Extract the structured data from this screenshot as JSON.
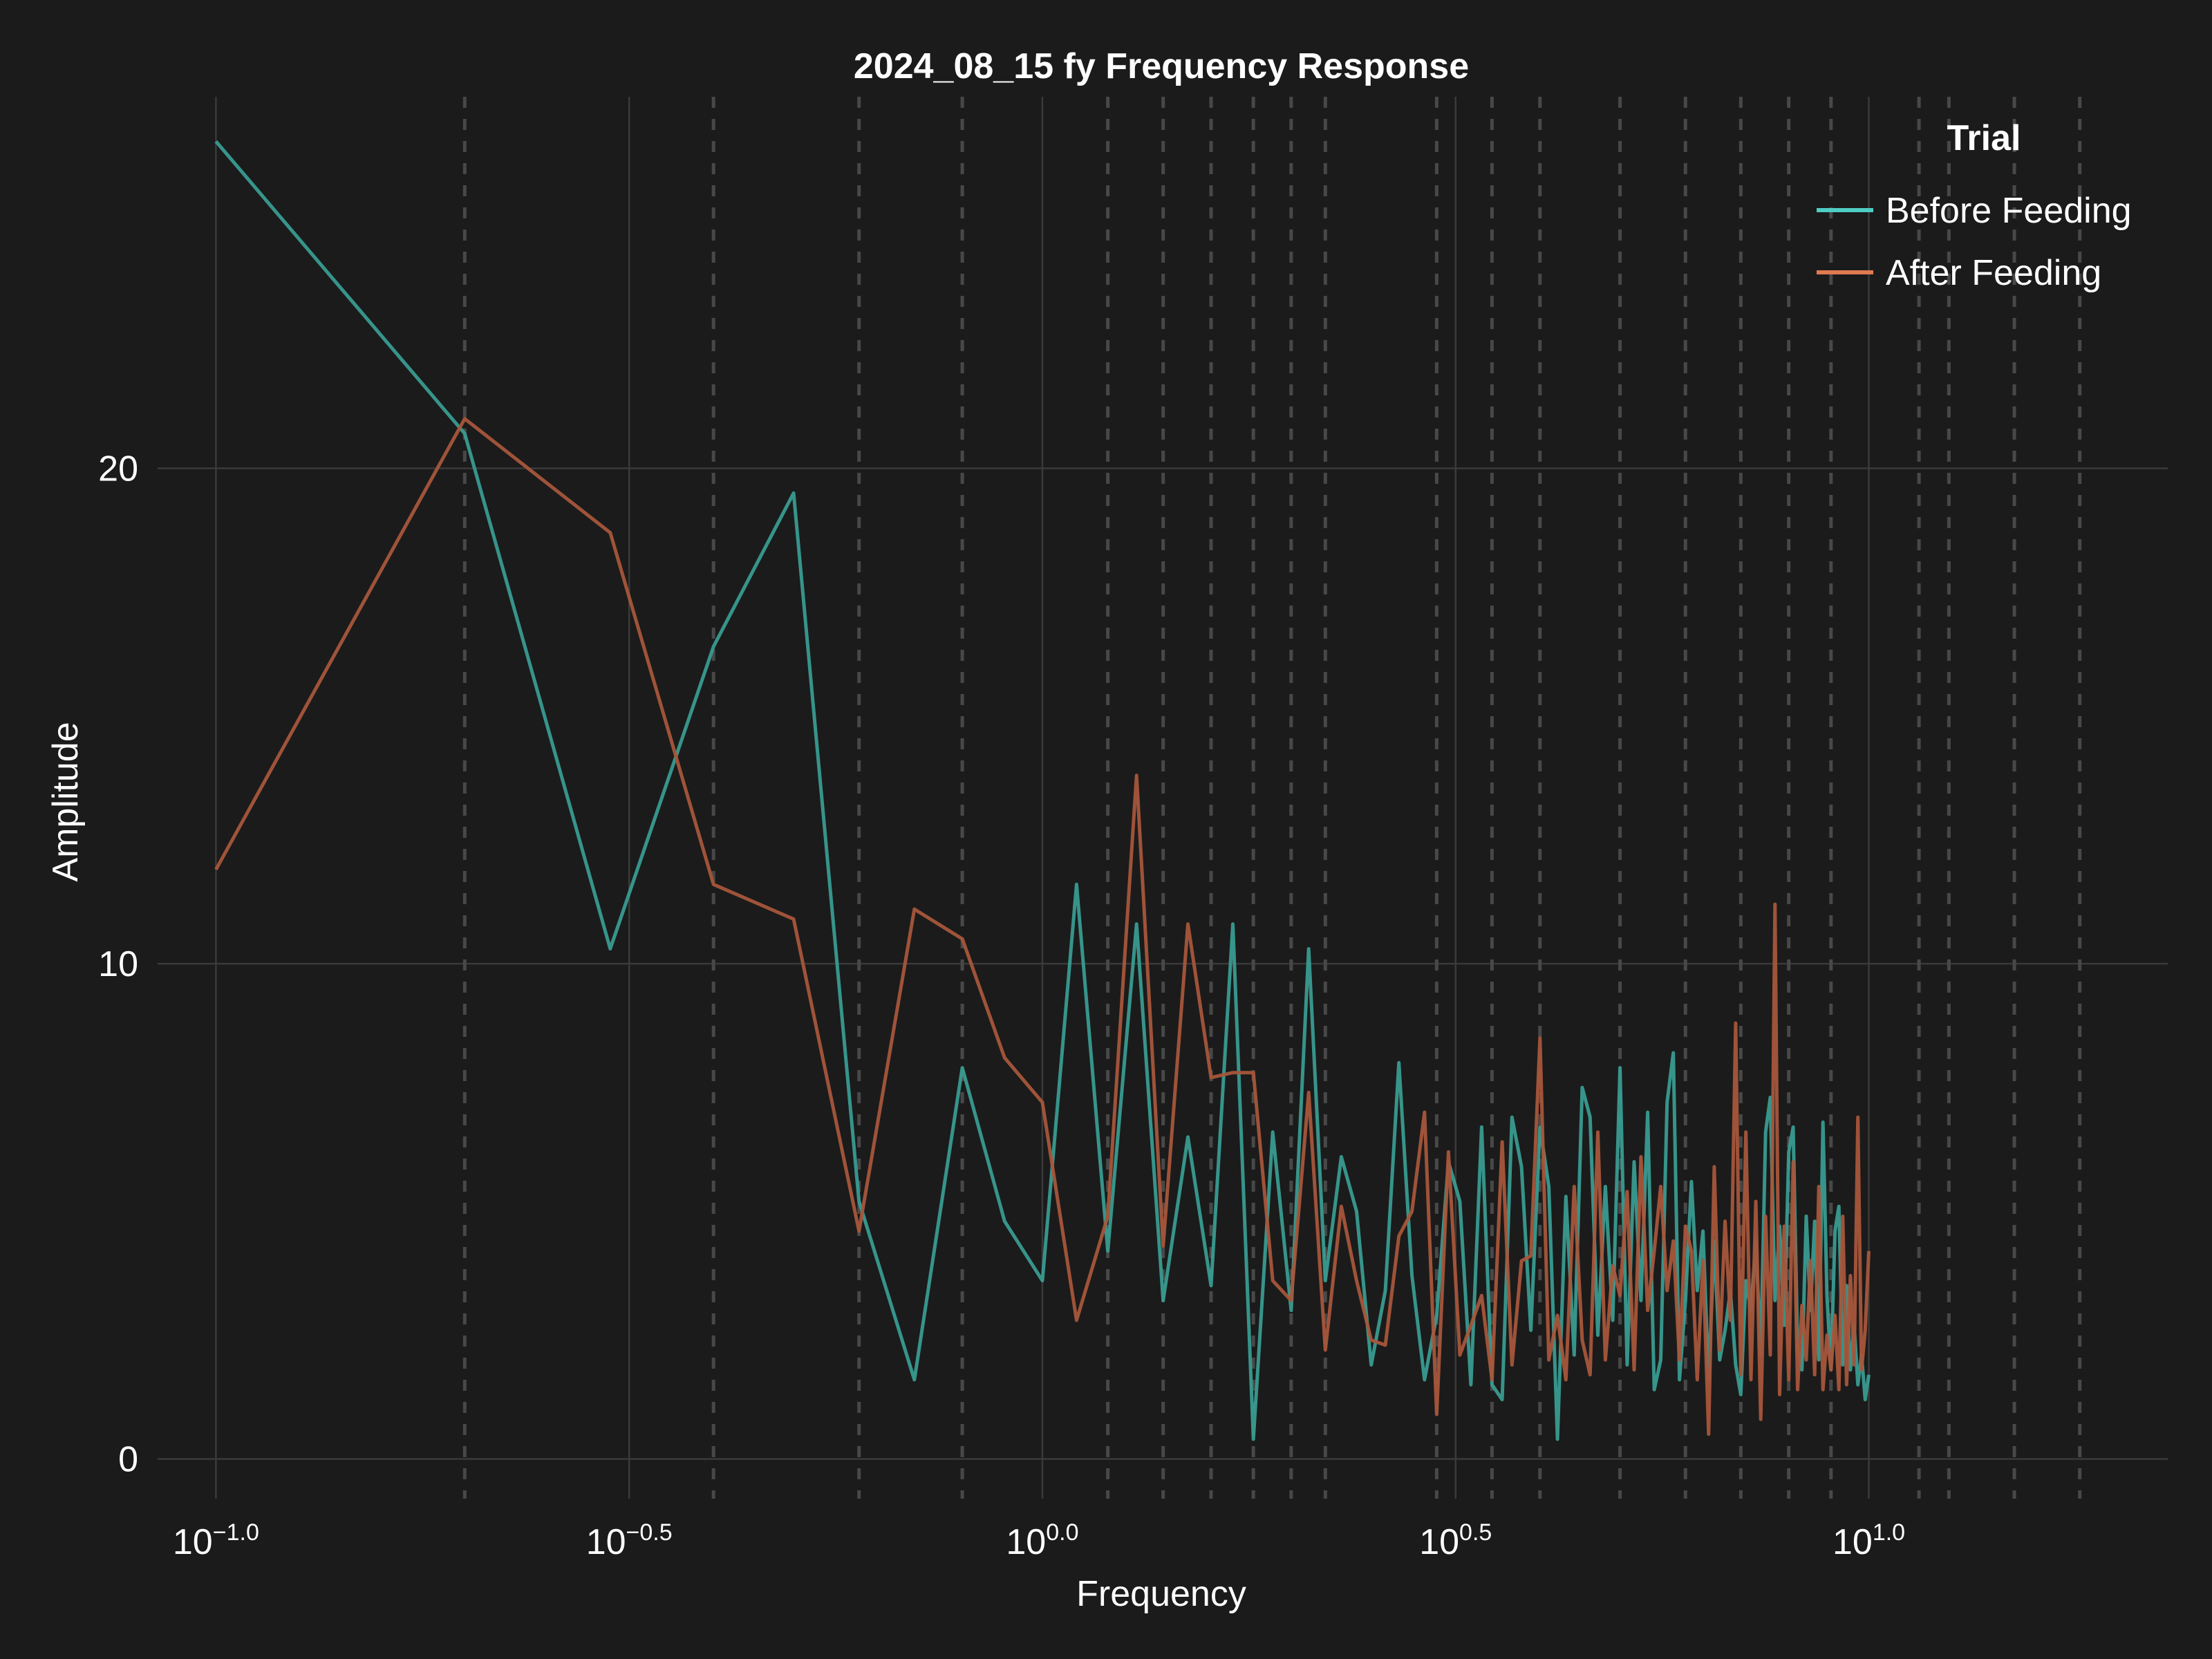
{
  "chart_data": {
    "type": "line",
    "title": "2024_08_15 fy Frequency Response",
    "xlabel": "Frequency",
    "ylabel": "Amplitude",
    "xscale": "log",
    "xlim": [
      0.085,
      23
    ],
    "ylim": [
      -0.8,
      27.5
    ],
    "grid": true,
    "legend_title": "Trial",
    "legend_position": "top-right",
    "x_ticks": [
      {
        "base": "10",
        "exp": "−1.0",
        "value": 0.1
      },
      {
        "base": "10",
        "exp": "−0.5",
        "value": 0.31623
      },
      {
        "base": "10",
        "exp": "0.0",
        "value": 1.0
      },
      {
        "base": "10",
        "exp": "0.5",
        "value": 3.16228
      },
      {
        "base": "10",
        "exp": "1.0",
        "value": 10.0
      }
    ],
    "y_ticks": [
      {
        "label": "0",
        "value": 0
      },
      {
        "label": "10",
        "value": 10
      },
      {
        "label": "20",
        "value": 20
      }
    ],
    "dashed_lines_x": [
      0.2,
      0.4,
      0.6,
      0.8,
      1.2,
      1.4,
      1.6,
      1.8,
      2.0,
      2.2,
      3.0,
      3.5,
      4.0,
      5.0,
      6.0,
      7.0,
      8.0,
      9.0,
      11.5,
      12.5,
      15.0,
      18.0
    ],
    "series": [
      {
        "name": "Before Feeding",
        "color": "#3a9e94",
        "legend_color": "#4ecdc4",
        "x": [
          0.1,
          0.2,
          0.3,
          0.4,
          0.5,
          0.6,
          0.7,
          0.8,
          0.9,
          1.0,
          1.1,
          1.2,
          1.3,
          1.4,
          1.5,
          1.6,
          1.7,
          1.8,
          1.9,
          2.0,
          2.1,
          2.2,
          2.3,
          2.4,
          2.5,
          2.6,
          2.7,
          2.8,
          2.9,
          3.0,
          3.1,
          3.2,
          3.3,
          3.4,
          3.5,
          3.6,
          3.7,
          3.8,
          3.9,
          4.0,
          4.1,
          4.2,
          4.3,
          4.4,
          4.5,
          4.6,
          4.7,
          4.8,
          4.9,
          5.0,
          5.1,
          5.2,
          5.3,
          5.4,
          5.5,
          5.6,
          5.7,
          5.8,
          5.9,
          6.0,
          6.1,
          6.2,
          6.3,
          6.4,
          6.5,
          6.6,
          6.7,
          6.8,
          6.9,
          7.0,
          7.1,
          7.2,
          7.3,
          7.4,
          7.5,
          7.6,
          7.7,
          7.8,
          7.9,
          8.0,
          8.1,
          8.2,
          8.3,
          8.4,
          8.5,
          8.6,
          8.7,
          8.8,
          8.9,
          9.0,
          9.1,
          9.2,
          9.3,
          9.4,
          9.5,
          9.6,
          9.7,
          9.8,
          9.9,
          10.0
        ],
        "y": [
          26.6,
          20.7,
          10.3,
          16.4,
          19.5,
          5.2,
          1.6,
          7.9,
          4.8,
          3.6,
          11.6,
          4.2,
          10.8,
          3.2,
          6.5,
          3.5,
          10.8,
          0.4,
          6.6,
          3.0,
          10.3,
          3.6,
          6.1,
          5.0,
          1.9,
          3.4,
          8.0,
          3.7,
          1.6,
          2.9,
          6.0,
          5.2,
          1.5,
          6.7,
          1.5,
          1.2,
          6.9,
          5.9,
          2.6,
          6.7,
          5.5,
          0.4,
          5.3,
          2.1,
          7.5,
          6.9,
          2.5,
          5.5,
          2.8,
          7.9,
          1.9,
          6.0,
          3.2,
          7.0,
          1.4,
          2.0,
          7.2,
          8.2,
          1.6,
          3.2,
          5.6,
          3.4,
          4.6,
          1.6,
          4.4,
          2.0,
          2.6,
          3.4,
          1.9,
          1.3,
          3.6,
          3.0,
          4.4,
          2.1,
          6.6,
          7.3,
          3.2,
          4.7,
          2.7,
          6.2,
          6.7,
          2.2,
          1.8,
          4.9,
          3.0,
          4.8,
          2.0,
          6.8,
          3.3,
          1.8,
          4.6,
          5.1,
          1.9,
          3.5,
          1.8,
          2.7,
          1.5,
          2.1,
          1.2,
          1.7
        ]
      },
      {
        "name": "After Feeding",
        "color": "#a7563b",
        "legend_color": "#e07a50",
        "x": [
          0.1,
          0.2,
          0.3,
          0.4,
          0.5,
          0.6,
          0.7,
          0.8,
          0.9,
          1.0,
          1.1,
          1.2,
          1.3,
          1.4,
          1.5,
          1.6,
          1.7,
          1.8,
          1.9,
          2.0,
          2.1,
          2.2,
          2.3,
          2.4,
          2.5,
          2.6,
          2.7,
          2.8,
          2.9,
          3.0,
          3.1,
          3.2,
          3.3,
          3.4,
          3.5,
          3.6,
          3.7,
          3.8,
          3.9,
          4.0,
          4.1,
          4.2,
          4.3,
          4.4,
          4.5,
          4.6,
          4.7,
          4.8,
          4.9,
          5.0,
          5.1,
          5.2,
          5.3,
          5.4,
          5.5,
          5.6,
          5.7,
          5.8,
          5.9,
          6.0,
          6.1,
          6.2,
          6.3,
          6.4,
          6.5,
          6.6,
          6.7,
          6.8,
          6.9,
          7.0,
          7.1,
          7.2,
          7.3,
          7.4,
          7.5,
          7.6,
          7.7,
          7.8,
          7.9,
          8.0,
          8.1,
          8.2,
          8.3,
          8.4,
          8.5,
          8.6,
          8.7,
          8.8,
          8.9,
          9.0,
          9.1,
          9.2,
          9.3,
          9.4,
          9.5,
          9.6,
          9.7,
          9.8,
          9.9,
          10.0
        ],
        "y": [
          11.9,
          21.0,
          18.7,
          11.6,
          10.9,
          4.6,
          11.1,
          10.5,
          8.1,
          7.2,
          2.8,
          4.9,
          13.8,
          4.3,
          10.8,
          7.7,
          7.8,
          7.8,
          3.6,
          3.2,
          7.4,
          2.2,
          5.1,
          3.6,
          2.4,
          2.3,
          4.5,
          5.0,
          7.0,
          0.9,
          6.2,
          2.1,
          2.7,
          3.3,
          1.6,
          6.4,
          1.9,
          4.0,
          4.1,
          8.5,
          2.0,
          2.9,
          1.6,
          5.5,
          2.4,
          1.7,
          6.6,
          2.0,
          3.9,
          3.3,
          5.4,
          1.8,
          6.1,
          3.0,
          4.2,
          5.5,
          3.4,
          4.4,
          2.0,
          4.7,
          4.2,
          1.6,
          4.0,
          0.5,
          5.9,
          2.2,
          4.8,
          2.8,
          8.8,
          1.7,
          6.6,
          1.6,
          5.2,
          0.8,
          4.9,
          2.1,
          11.2,
          1.3,
          4.7,
          1.6,
          6.0,
          1.4,
          3.1,
          2.0,
          4.0,
          1.7,
          5.5,
          1.4,
          2.5,
          1.8,
          2.9,
          1.4,
          4.9,
          1.5,
          3.7,
          1.9,
          6.9,
          1.8,
          2.6,
          4.2
        ]
      }
    ]
  }
}
